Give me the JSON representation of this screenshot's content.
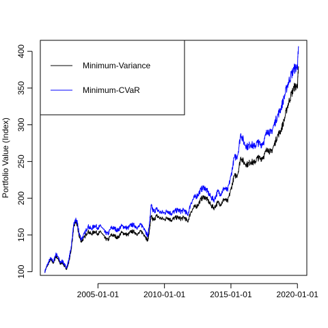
{
  "chart_data": {
    "type": "line",
    "title": "",
    "xlabel": "",
    "ylabel": "Portfolio Value (Index)",
    "xlim": [
      "2000-09-01",
      "2020-09-15"
    ],
    "ylim": [
      95,
      415
    ],
    "x_ticks": [
      "2005-01-01",
      "2010-01-01",
      "2015-01-01",
      "2020-01-01"
    ],
    "y_ticks": [
      100,
      150,
      200,
      250,
      300,
      350,
      400
    ],
    "grid": false,
    "legend": "top-left",
    "series": [
      {
        "name": "Minimum-Variance",
        "color": "#000000",
        "points": [
          [
            "2001-01-02",
            100
          ],
          [
            "2001-03-01",
            107
          ],
          [
            "2001-06-01",
            116
          ],
          [
            "2001-09-01",
            112
          ],
          [
            "2001-11-01",
            121
          ],
          [
            "2002-01-01",
            118
          ],
          [
            "2002-03-01",
            110
          ],
          [
            "2002-05-01",
            113
          ],
          [
            "2002-07-01",
            107
          ],
          [
            "2002-09-01",
            104
          ],
          [
            "2002-11-01",
            115
          ],
          [
            "2003-01-01",
            131
          ],
          [
            "2003-03-01",
            158
          ],
          [
            "2003-05-01",
            169
          ],
          [
            "2003-06-15",
            162
          ],
          [
            "2003-08-01",
            149
          ],
          [
            "2003-10-01",
            141
          ],
          [
            "2004-01-01",
            147
          ],
          [
            "2004-04-01",
            155
          ],
          [
            "2004-07-01",
            151
          ],
          [
            "2004-10-01",
            155
          ],
          [
            "2005-01-01",
            152
          ],
          [
            "2005-04-01",
            154
          ],
          [
            "2005-07-01",
            146
          ],
          [
            "2005-10-01",
            143
          ],
          [
            "2006-01-01",
            150
          ],
          [
            "2006-04-01",
            149
          ],
          [
            "2006-07-01",
            146
          ],
          [
            "2006-10-01",
            153
          ],
          [
            "2007-01-01",
            152
          ],
          [
            "2007-04-01",
            150
          ],
          [
            "2007-07-01",
            155
          ],
          [
            "2007-10-01",
            154
          ],
          [
            "2008-01-01",
            151
          ],
          [
            "2008-04-01",
            155
          ],
          [
            "2008-07-01",
            150
          ],
          [
            "2008-10-01",
            142
          ],
          [
            "2008-11-20",
            158
          ],
          [
            "2009-01-01",
            175
          ],
          [
            "2009-03-01",
            170
          ],
          [
            "2009-06-01",
            176
          ],
          [
            "2009-09-01",
            173
          ],
          [
            "2010-01-01",
            171
          ],
          [
            "2010-04-01",
            174
          ],
          [
            "2010-07-01",
            170
          ],
          [
            "2010-10-01",
            173
          ],
          [
            "2011-01-01",
            174
          ],
          [
            "2011-04-01",
            172
          ],
          [
            "2011-07-01",
            174
          ],
          [
            "2011-10-01",
            168
          ],
          [
            "2012-01-01",
            182
          ],
          [
            "2012-04-01",
            188
          ],
          [
            "2012-07-01",
            190
          ],
          [
            "2012-10-01",
            199
          ],
          [
            "2013-01-01",
            202
          ],
          [
            "2013-04-01",
            198
          ],
          [
            "2013-07-01",
            190
          ],
          [
            "2013-10-01",
            187
          ],
          [
            "2014-01-01",
            194
          ],
          [
            "2014-04-01",
            192
          ],
          [
            "2014-07-01",
            199
          ],
          [
            "2014-10-01",
            195
          ],
          [
            "2015-01-01",
            212
          ],
          [
            "2015-04-01",
            230
          ],
          [
            "2015-07-01",
            232
          ],
          [
            "2015-10-01",
            256
          ],
          [
            "2016-01-01",
            248
          ],
          [
            "2016-04-01",
            246
          ],
          [
            "2016-07-01",
            250
          ],
          [
            "2016-10-01",
            248
          ],
          [
            "2017-01-01",
            255
          ],
          [
            "2017-04-01",
            254
          ],
          [
            "2017-07-01",
            258
          ],
          [
            "2017-10-01",
            268
          ],
          [
            "2018-01-01",
            262
          ],
          [
            "2018-04-01",
            272
          ],
          [
            "2018-07-01",
            285
          ],
          [
            "2018-10-01",
            292
          ],
          [
            "2019-01-01",
            306
          ],
          [
            "2019-04-01",
            325
          ],
          [
            "2019-07-01",
            339
          ],
          [
            "2019-10-01",
            351
          ],
          [
            "2020-01-01",
            353
          ],
          [
            "2020-02-01",
            378
          ]
        ]
      },
      {
        "name": "Minimum-CVaR",
        "color": "#0000ff",
        "points": [
          [
            "2001-01-02",
            100
          ],
          [
            "2001-03-01",
            108
          ],
          [
            "2001-06-01",
            118
          ],
          [
            "2001-09-01",
            114
          ],
          [
            "2001-11-01",
            124
          ],
          [
            "2002-01-01",
            121
          ],
          [
            "2002-03-01",
            112
          ],
          [
            "2002-05-01",
            115
          ],
          [
            "2002-07-01",
            109
          ],
          [
            "2002-09-01",
            106
          ],
          [
            "2002-11-01",
            118
          ],
          [
            "2003-01-01",
            135
          ],
          [
            "2003-03-01",
            162
          ],
          [
            "2003-05-01",
            171
          ],
          [
            "2003-06-15",
            166
          ],
          [
            "2003-08-01",
            153
          ],
          [
            "2003-10-01",
            144
          ],
          [
            "2004-01-01",
            152
          ],
          [
            "2004-04-01",
            162
          ],
          [
            "2004-07-01",
            158
          ],
          [
            "2004-10-01",
            163
          ],
          [
            "2005-01-01",
            160
          ],
          [
            "2005-04-01",
            162
          ],
          [
            "2005-07-01",
            154
          ],
          [
            "2005-10-01",
            151
          ],
          [
            "2006-01-01",
            160
          ],
          [
            "2006-04-01",
            159
          ],
          [
            "2006-07-01",
            156
          ],
          [
            "2006-10-01",
            162
          ],
          [
            "2007-01-01",
            161
          ],
          [
            "2007-04-01",
            159
          ],
          [
            "2007-07-01",
            164
          ],
          [
            "2007-10-01",
            163
          ],
          [
            "2008-01-01",
            160
          ],
          [
            "2008-04-01",
            164
          ],
          [
            "2008-07-01",
            159
          ],
          [
            "2008-10-01",
            148
          ],
          [
            "2008-11-20",
            168
          ],
          [
            "2009-01-01",
            190
          ],
          [
            "2009-03-01",
            182
          ],
          [
            "2009-06-01",
            185
          ],
          [
            "2009-09-01",
            181
          ],
          [
            "2010-01-01",
            180
          ],
          [
            "2010-04-01",
            183
          ],
          [
            "2010-07-01",
            179
          ],
          [
            "2010-10-01",
            182
          ],
          [
            "2011-01-01",
            184
          ],
          [
            "2011-04-01",
            182
          ],
          [
            "2011-07-01",
            184
          ],
          [
            "2011-10-01",
            177
          ],
          [
            "2012-01-01",
            194
          ],
          [
            "2012-04-01",
            201
          ],
          [
            "2012-07-01",
            204
          ],
          [
            "2012-10-01",
            212
          ],
          [
            "2013-01-01",
            215
          ],
          [
            "2013-04-01",
            209
          ],
          [
            "2013-07-01",
            201
          ],
          [
            "2013-10-01",
            198
          ],
          [
            "2014-01-01",
            209
          ],
          [
            "2014-04-01",
            206
          ],
          [
            "2014-07-01",
            214
          ],
          [
            "2014-10-01",
            210
          ],
          [
            "2015-01-01",
            230
          ],
          [
            "2015-04-01",
            255
          ],
          [
            "2015-07-01",
            258
          ],
          [
            "2015-10-01",
            288
          ],
          [
            "2016-01-01",
            275
          ],
          [
            "2016-04-01",
            270
          ],
          [
            "2016-07-01",
            274
          ],
          [
            "2016-10-01",
            270
          ],
          [
            "2017-01-01",
            276
          ],
          [
            "2017-04-01",
            273
          ],
          [
            "2017-07-01",
            278
          ],
          [
            "2017-10-01",
            293
          ],
          [
            "2018-01-01",
            288
          ],
          [
            "2018-04-01",
            300
          ],
          [
            "2018-07-01",
            312
          ],
          [
            "2018-10-01",
            322
          ],
          [
            "2019-01-01",
            337
          ],
          [
            "2019-04-01",
            354
          ],
          [
            "2019-07-01",
            366
          ],
          [
            "2019-10-01",
            376
          ],
          [
            "2020-01-01",
            379
          ],
          [
            "2020-02-01",
            405
          ]
        ]
      }
    ]
  }
}
